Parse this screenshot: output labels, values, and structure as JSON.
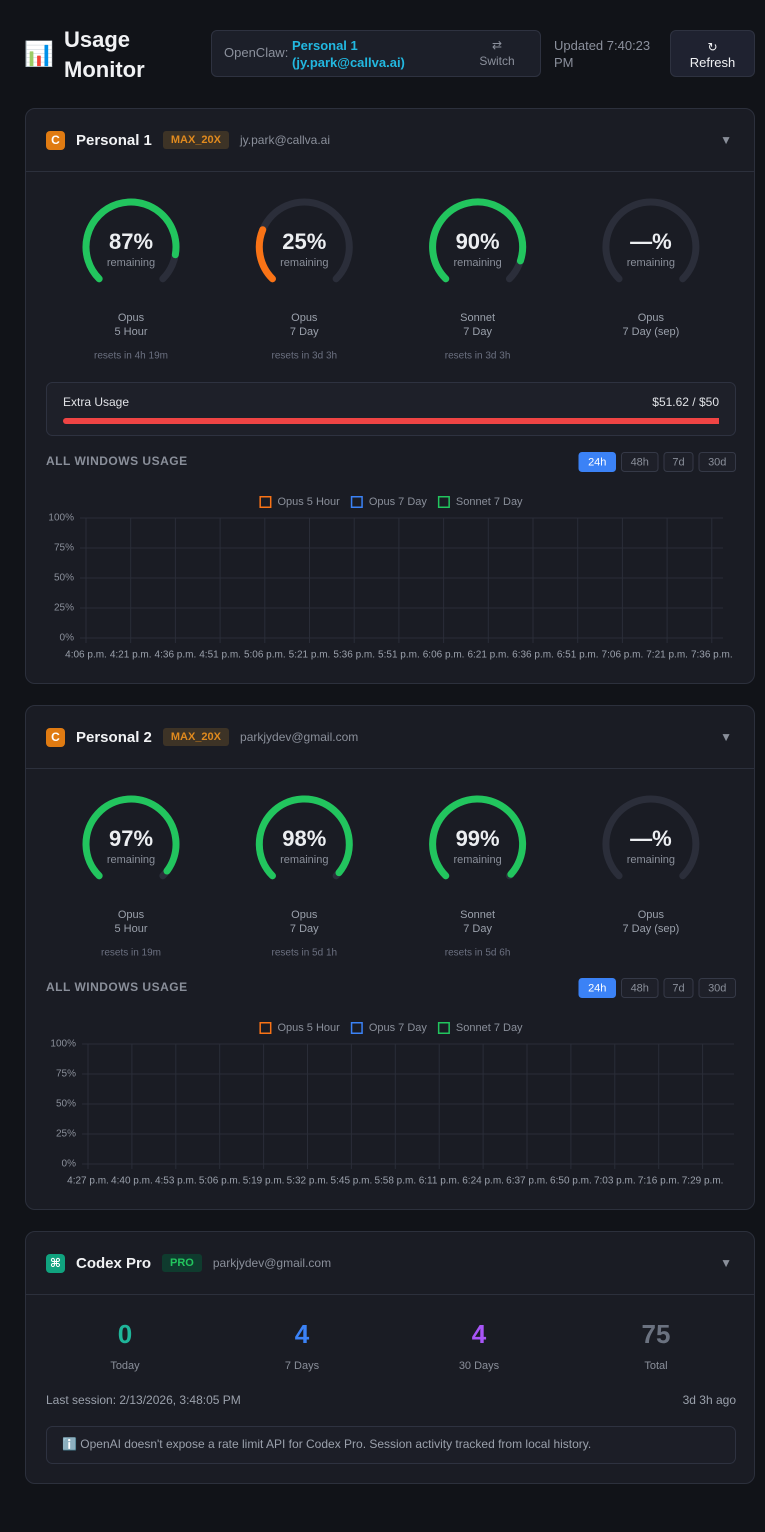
{
  "header": {
    "icon": "📊",
    "title": "Usage Monitor",
    "source_label": "OpenClaw:",
    "account": "Personal 1 (jy.park@callva.ai)",
    "switch_icon": "⇄",
    "switch": "Switch",
    "updated": "Updated 7:40:23 PM",
    "refresh_icon": "↻",
    "refresh": "Refresh"
  },
  "accounts": [
    {
      "badge": "C",
      "badge_color": "#e07b12",
      "name": "Personal 1",
      "plan": "MAX_20X",
      "email": "jy.park@callva.ai",
      "toggle": "▼",
      "gauges": [
        {
          "value": 87,
          "value_label": "87%",
          "caption": "remaining",
          "model": "Opus",
          "window": "5 Hour",
          "reset": "resets in 4h 19m",
          "color": "#22c55e"
        },
        {
          "value": 25,
          "value_label": "25%",
          "caption": "remaining",
          "model": "Opus",
          "window": "7 Day",
          "reset": "resets in 3d 3h",
          "color": "#f97316"
        },
        {
          "value": 90,
          "value_label": "90%",
          "caption": "remaining",
          "model": "Sonnet",
          "window": "7 Day",
          "reset": "resets in 3d 3h",
          "color": "#22c55e"
        },
        {
          "value": null,
          "value_label": "—%",
          "caption": "remaining",
          "model": "Opus",
          "window": "7 Day (sep)",
          "color": "#22c55e"
        }
      ],
      "extra_usage": {
        "label": "Extra Usage",
        "amount_label": "$51.62 / $50",
        "used": 51.62,
        "limit": 50,
        "color": "#ef4444"
      },
      "chart": {
        "type": "line",
        "title": "ALL WINDOWS USAGE",
        "ranges": [
          "24h",
          "48h",
          "7d",
          "30d"
        ],
        "active_range": "24h",
        "series": [
          {
            "name": "Opus 5 Hour",
            "color": "#f97316"
          },
          {
            "name": "Opus 7 Day",
            "color": "#3b82f6"
          },
          {
            "name": "Sonnet 7 Day",
            "color": "#22c55e"
          }
        ],
        "categories": [
          "4:06 p.m.",
          "4:21 p.m.",
          "4:36 p.m.",
          "4:51 p.m.",
          "5:06 p.m.",
          "5:21 p.m.",
          "5:36 p.m.",
          "5:51 p.m.",
          "6:06 p.m.",
          "6:21 p.m.",
          "6:36 p.m.",
          "6:51 p.m.",
          "7:06 p.m.",
          "7:21 p.m.",
          "7:36 p.m."
        ],
        "ylim": [
          0,
          100
        ],
        "yticks": [
          {
            "value": 0,
            "label": "0%"
          },
          {
            "value": 25,
            "label": "25%"
          },
          {
            "value": 50,
            "label": "50%"
          },
          {
            "value": 75,
            "label": "75%"
          },
          {
            "value": 100,
            "label": "100%"
          }
        ],
        "grid": true
      }
    },
    {
      "badge": "C",
      "badge_color": "#e07b12",
      "name": "Personal 2",
      "plan": "MAX_20X",
      "email": "parkjydev@gmail.com",
      "toggle": "▼",
      "gauges": [
        {
          "value": 97,
          "value_label": "97%",
          "caption": "remaining",
          "model": "Opus",
          "window": "5 Hour",
          "reset": "resets in 19m",
          "color": "#22c55e"
        },
        {
          "value": 98,
          "value_label": "98%",
          "caption": "remaining",
          "model": "Opus",
          "window": "7 Day",
          "reset": "resets in 5d 1h",
          "color": "#22c55e"
        },
        {
          "value": 99,
          "value_label": "99%",
          "caption": "remaining",
          "model": "Sonnet",
          "window": "7 Day",
          "reset": "resets in 5d 6h",
          "color": "#22c55e"
        },
        {
          "value": null,
          "value_label": "—%",
          "caption": "remaining",
          "model": "Opus",
          "window": "7 Day (sep)",
          "color": "#22c55e"
        }
      ],
      "chart": {
        "type": "line",
        "title": "ALL WINDOWS USAGE",
        "ranges": [
          "24h",
          "48h",
          "7d",
          "30d"
        ],
        "active_range": "24h",
        "series": [
          {
            "name": "Opus 5 Hour",
            "color": "#f97316"
          },
          {
            "name": "Opus 7 Day",
            "color": "#3b82f6"
          },
          {
            "name": "Sonnet 7 Day",
            "color": "#22c55e"
          }
        ],
        "categories": [
          "4:27 p.m.",
          "4:40 p.m.",
          "4:53 p.m.",
          "5:06 p.m.",
          "5:19 p.m.",
          "5:32 p.m.",
          "5:45 p.m.",
          "5:58 p.m.",
          "6:11 p.m.",
          "6:24 p.m.",
          "6:37 p.m.",
          "6:50 p.m.",
          "7:03 p.m.",
          "7:16 p.m.",
          "7:29 p.m."
        ],
        "ylim": [
          0,
          100
        ],
        "yticks": [
          {
            "value": 0,
            "label": "0%"
          },
          {
            "value": 25,
            "label": "25%"
          },
          {
            "value": 50,
            "label": "50%"
          },
          {
            "value": 75,
            "label": "75%"
          },
          {
            "value": 100,
            "label": "100%"
          }
        ],
        "grid": true
      }
    }
  ],
  "codex": {
    "badge": "⌘",
    "badge_color": "#10a37f",
    "name": "Codex Pro",
    "plan": "PRO",
    "email": "parkjydev@gmail.com",
    "toggle": "▼",
    "stats": [
      {
        "value": 0,
        "label": "Today",
        "color": "#1fb59a"
      },
      {
        "value": 4,
        "label": "7 Days",
        "color": "#3b82f6"
      },
      {
        "value": 4,
        "label": "30 Days",
        "color": "#a855f7"
      },
      {
        "value": 75,
        "label": "Total",
        "color": "#6b7280"
      }
    ],
    "last_session": "Last session: 2/13/2026, 3:48:05 PM",
    "ago": "3d 3h ago",
    "note": "ℹ️ OpenAI doesn't expose a rate limit API for Codex Pro. Session activity tracked from local history."
  }
}
